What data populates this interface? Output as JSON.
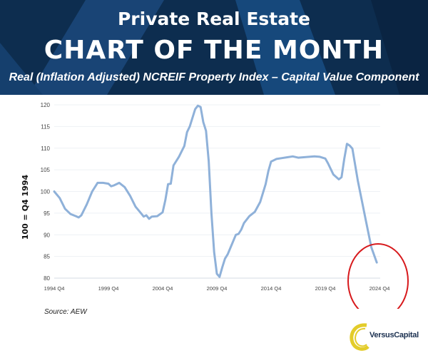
{
  "header": {
    "kicker": "Private Real Estate",
    "title": "CHART OF THE MONTH",
    "subtitle": "Real (Inflation Adjusted) NCREIF Property Index – Capital Value Component"
  },
  "source": "Source: AEW",
  "logo": {
    "text": "VersusCapital",
    "color": "#e3cc2a"
  },
  "chart_data": {
    "type": "line",
    "title": "Real (Inflation Adjusted) NCREIF Property Index – Capital Value Component",
    "ylabel": "100 = Q4 1994",
    "xlabel": "",
    "ylim": [
      80,
      120
    ],
    "yticks": [
      80,
      85,
      90,
      95,
      100,
      105,
      110,
      115,
      120
    ],
    "xticks": [
      "1994 Q4",
      "1999 Q4",
      "2004 Q4",
      "2009 Q4",
      "2014 Q4",
      "2019 Q4",
      "2024 Q4"
    ],
    "grid": true,
    "line_color": "#8fb1d9",
    "annotation": {
      "type": "ellipse",
      "color": "#d7191c",
      "around": "2024"
    },
    "points": [
      [
        "1994 Q4",
        100
      ],
      [
        "1995 Q2",
        98.5
      ],
      [
        "1995 Q4",
        96
      ],
      [
        "1996 Q2",
        94.8
      ],
      [
        "1996 Q4",
        94.3
      ],
      [
        "1997 Q1",
        94
      ],
      [
        "1997 Q2",
        94.5
      ],
      [
        "1997 Q4",
        97
      ],
      [
        "1998 Q2",
        100
      ],
      [
        "1998 Q4",
        102
      ],
      [
        "1999 Q2",
        102
      ],
      [
        "1999 Q4",
        101.8
      ],
      [
        "2000 Q1",
        101.2
      ],
      [
        "2000 Q2",
        101.4
      ],
      [
        "2000 Q4",
        102
      ],
      [
        "2001 Q2",
        101
      ],
      [
        "2001 Q4",
        99
      ],
      [
        "2002 Q2",
        96.5
      ],
      [
        "2002 Q4",
        95
      ],
      [
        "2003 Q1",
        94.2
      ],
      [
        "2003 Q2",
        94.5
      ],
      [
        "2003 Q3",
        93.7
      ],
      [
        "2003 Q4",
        94.2
      ],
      [
        "2004 Q2",
        94.3
      ],
      [
        "2004 Q4",
        95.2
      ],
      [
        "2005 Q1",
        98
      ],
      [
        "2005 Q2",
        101.7
      ],
      [
        "2005 Q3",
        101.8
      ],
      [
        "2005 Q4",
        106
      ],
      [
        "2006 Q2",
        108
      ],
      [
        "2006 Q4",
        110.5
      ],
      [
        "2007 Q1",
        113.7
      ],
      [
        "2007 Q2",
        115
      ],
      [
        "2007 Q4",
        119
      ],
      [
        "2008 Q1",
        119.8
      ],
      [
        "2008 Q2",
        119.5
      ],
      [
        "2008 Q3",
        116
      ],
      [
        "2008 Q4",
        114
      ],
      [
        "2009 Q1",
        107
      ],
      [
        "2009 Q2",
        95
      ],
      [
        "2009 Q3",
        86
      ],
      [
        "2009 Q4",
        81
      ],
      [
        "2010 Q1",
        80.3
      ],
      [
        "2010 Q2",
        82.5
      ],
      [
        "2010 Q3",
        84.5
      ],
      [
        "2010 Q4",
        85.5
      ],
      [
        "2011 Q1",
        87
      ],
      [
        "2011 Q2",
        88.5
      ],
      [
        "2011 Q3",
        90
      ],
      [
        "2011 Q4",
        90.2
      ],
      [
        "2012 Q1",
        91.2
      ],
      [
        "2012 Q2",
        92.7
      ],
      [
        "2012 Q4",
        94.3
      ],
      [
        "2013 Q2",
        95.3
      ],
      [
        "2013 Q4",
        97.6
      ],
      [
        "2014 Q2",
        101.7
      ],
      [
        "2014 Q3",
        104.7
      ],
      [
        "2014 Q4",
        106.9
      ],
      [
        "2015 Q2",
        107.5
      ],
      [
        "2015 Q4",
        107.7
      ],
      [
        "2016 Q2",
        107.9
      ],
      [
        "2016 Q4",
        108.1
      ],
      [
        "2017 Q2",
        107.8
      ],
      [
        "2017 Q4",
        107.9
      ],
      [
        "2018 Q2",
        108
      ],
      [
        "2018 Q4",
        108.1
      ],
      [
        "2019 Q2",
        108
      ],
      [
        "2019 Q4",
        107.6
      ],
      [
        "2020 Q1",
        106.5
      ],
      [
        "2020 Q3",
        103.9
      ],
      [
        "2021 Q1",
        102.8
      ],
      [
        "2021 Q2",
        103.3
      ],
      [
        "2021 Q3",
        107.5
      ],
      [
        "2021 Q4",
        111
      ],
      [
        "2022 Q1",
        110.6
      ],
      [
        "2022 Q2",
        109.9
      ],
      [
        "2022 Q4",
        102.5
      ],
      [
        "2023 Q3",
        93.2
      ],
      [
        "2024 Q1",
        87.1
      ],
      [
        "2024 Q3",
        83.6
      ]
    ]
  }
}
